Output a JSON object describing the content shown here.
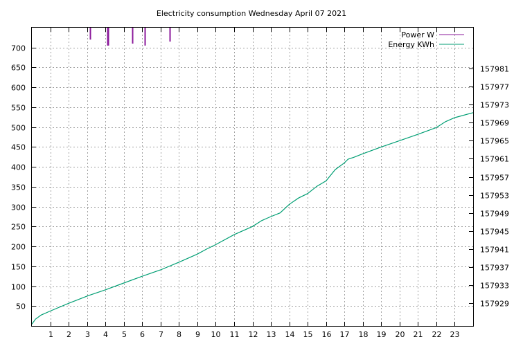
{
  "chart_data": {
    "type": "line",
    "title": "Electricity consumption Wednesday April 07 2021",
    "xlabel": "",
    "ylabel": "",
    "y2label": "",
    "grid": true,
    "legend_position": "top-right",
    "xlim": [
      0,
      24
    ],
    "ylim": [
      0,
      750
    ],
    "y2lim": [
      157924,
      157990
    ],
    "x_ticks": [
      1,
      2,
      3,
      4,
      5,
      6,
      7,
      8,
      9,
      10,
      11,
      12,
      13,
      14,
      15,
      16,
      17,
      18,
      19,
      20,
      21,
      22,
      23
    ],
    "y_ticks": [
      50,
      100,
      150,
      200,
      250,
      300,
      350,
      400,
      450,
      500,
      550,
      600,
      650,
      700
    ],
    "y2_ticks": [
      157929,
      157933,
      157937,
      157941,
      157945,
      157949,
      157953,
      157957,
      157961,
      157965,
      157969,
      157973,
      157977,
      157981
    ],
    "series": [
      {
        "name": "Power W",
        "axis": "y",
        "color": "#8b1a9b",
        "style": "impulses",
        "x": [
          3.15,
          4.1,
          4.15,
          5.45,
          6.15,
          7.5
        ],
        "y": [
          720,
          705,
          705,
          710,
          705,
          715
        ]
      },
      {
        "name": "Energy KWh",
        "axis": "y2",
        "color": "#009e73",
        "style": "line",
        "x": [
          0,
          0.2,
          0.5,
          1,
          2,
          3,
          4,
          5,
          6,
          7,
          8,
          9,
          9.5,
          10,
          11,
          12,
          12.5,
          13,
          13.5,
          14,
          14.5,
          15,
          15.5,
          16,
          16.5,
          17,
          17.2,
          17.5,
          18,
          19,
          20,
          21,
          22,
          22.5,
          23,
          24
        ],
        "y": [
          157924.4,
          157925.5,
          157926.4,
          157927.3,
          157929,
          157930.6,
          157932,
          157933.5,
          157935,
          157936.4,
          157938.1,
          157939.9,
          157941,
          157942,
          157944.2,
          157946,
          157947.3,
          157948.2,
          157949,
          157950.9,
          157952.3,
          157953.3,
          157954.9,
          157956.1,
          157958.6,
          157960.1,
          157960.9,
          157961.3,
          157962.1,
          157963.6,
          157965,
          157966.4,
          157967.9,
          157969.2,
          157970.1,
          157971.2
        ]
      }
    ]
  }
}
